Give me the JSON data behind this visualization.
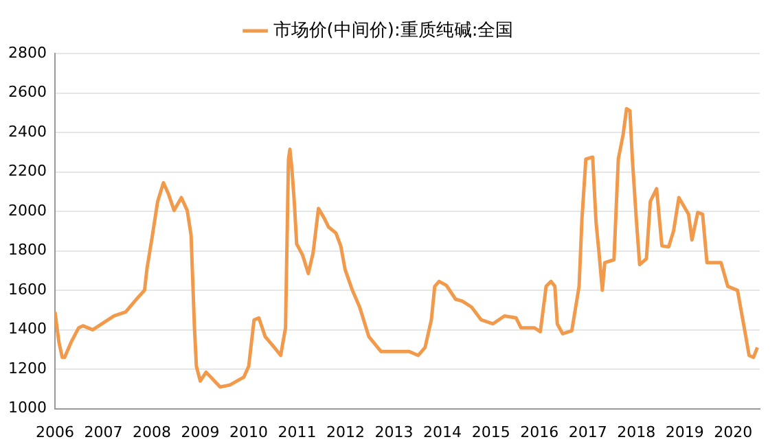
{
  "chart_data": {
    "type": "line",
    "xlim": [
      2006,
      2020.55
    ],
    "xticks": [
      2006,
      2007,
      2008,
      2009,
      2010,
      2011,
      2012,
      2013,
      2014,
      2015,
      2016,
      2017,
      2018,
      2019,
      2020
    ],
    "ylim": [
      1000,
      2800
    ],
    "yticks": [
      1000,
      1200,
      1400,
      1600,
      1800,
      2000,
      2200,
      2400,
      2600,
      2800
    ],
    "grid": "y",
    "legend": "top",
    "marker": "none",
    "line_style": "solid",
    "series": [
      {
        "name": "市场价(中间价):重质纯碱:全国",
        "color": "#f19a4c",
        "x": [
          2006.0,
          2006.08,
          2006.15,
          2006.2,
          2006.34,
          2006.49,
          2006.58,
          2006.78,
          2006.97,
          2007.22,
          2007.46,
          2007.7,
          2007.85,
          2007.9,
          2008.0,
          2008.12,
          2008.24,
          2008.34,
          2008.46,
          2008.61,
          2008.73,
          2008.81,
          2008.88,
          2008.92,
          2009.0,
          2009.12,
          2009.41,
          2009.61,
          2009.9,
          2010.0,
          2010.11,
          2010.21,
          2010.34,
          2010.53,
          2010.66,
          2010.76,
          2010.82,
          2010.85,
          2010.89,
          2010.94,
          2010.99,
          2011.11,
          2011.23,
          2011.33,
          2011.44,
          2011.56,
          2011.65,
          2011.8,
          2011.9,
          2011.99,
          2012.14,
          2012.29,
          2012.48,
          2012.73,
          2013.0,
          2013.31,
          2013.5,
          2013.64,
          2013.77,
          2013.84,
          2013.93,
          2014.08,
          2014.27,
          2014.41,
          2014.6,
          2014.8,
          2015.04,
          2015.28,
          2015.52,
          2015.62,
          2015.9,
          2016.02,
          2016.14,
          2016.24,
          2016.32,
          2016.37,
          2016.48,
          2016.67,
          2016.82,
          2016.88,
          2016.96,
          2017.1,
          2017.17,
          2017.23,
          2017.3,
          2017.35,
          2017.54,
          2017.63,
          2017.73,
          2017.8,
          2017.87,
          2017.92,
          2018.0,
          2018.07,
          2018.21,
          2018.29,
          2018.42,
          2018.53,
          2018.67,
          2018.77,
          2018.88,
          2019.08,
          2019.15,
          2019.27,
          2019.37,
          2019.46,
          2019.75,
          2019.89,
          2020.09,
          2020.23,
          2020.33,
          2020.42,
          2020.5
        ],
        "values": [
          1490,
          1340,
          1260,
          1260,
          1340,
          1410,
          1420,
          1400,
          1430,
          1470,
          1490,
          1560,
          1600,
          1710,
          1860,
          2050,
          2145,
          2090,
          2005,
          2070,
          2005,
          1880,
          1410,
          1215,
          1140,
          1185,
          1110,
          1120,
          1160,
          1215,
          1450,
          1460,
          1365,
          1310,
          1270,
          1410,
          2260,
          2315,
          2220,
          2050,
          1835,
          1780,
          1685,
          1790,
          2015,
          1965,
          1920,
          1890,
          1825,
          1705,
          1600,
          1515,
          1365,
          1290,
          1290,
          1290,
          1270,
          1310,
          1450,
          1620,
          1645,
          1625,
          1555,
          1545,
          1515,
          1450,
          1430,
          1470,
          1460,
          1410,
          1410,
          1390,
          1620,
          1645,
          1620,
          1430,
          1380,
          1395,
          1620,
          1965,
          2265,
          2275,
          1945,
          1795,
          1600,
          1740,
          1755,
          2265,
          2390,
          2520,
          2510,
          2265,
          1965,
          1730,
          1760,
          2050,
          2115,
          1825,
          1820,
          1900,
          2070,
          1985,
          1855,
          1995,
          1985,
          1740,
          1740,
          1620,
          1600,
          1410,
          1270,
          1260,
          1310
        ]
      }
    ]
  }
}
